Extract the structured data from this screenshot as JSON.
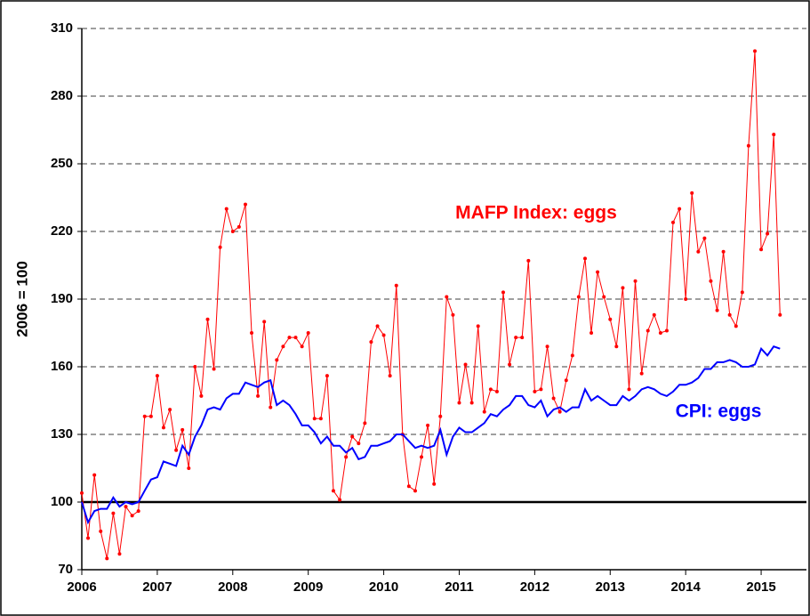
{
  "chart_data": {
    "type": "line",
    "y_label": "2006 = 100",
    "x": [
      2006,
      2006.083,
      2006.167,
      2006.25,
      2006.333,
      2006.417,
      2006.5,
      2006.583,
      2006.667,
      2006.75,
      2006.833,
      2006.917,
      2007,
      2007.083,
      2007.167,
      2007.25,
      2007.333,
      2007.417,
      2007.5,
      2007.583,
      2007.667,
      2007.75,
      2007.833,
      2007.917,
      2008,
      2008.083,
      2008.167,
      2008.25,
      2008.333,
      2008.417,
      2008.5,
      2008.583,
      2008.667,
      2008.75,
      2008.833,
      2008.917,
      2009,
      2009.083,
      2009.167,
      2009.25,
      2009.333,
      2009.417,
      2009.5,
      2009.583,
      2009.667,
      2009.75,
      2009.833,
      2009.917,
      2010,
      2010.083,
      2010.167,
      2010.25,
      2010.333,
      2010.417,
      2010.5,
      2010.583,
      2010.667,
      2010.75,
      2010.833,
      2010.917,
      2011,
      2011.083,
      2011.167,
      2011.25,
      2011.333,
      2011.417,
      2011.5,
      2011.583,
      2011.667,
      2011.75,
      2011.833,
      2011.917,
      2012,
      2012.083,
      2012.167,
      2012.25,
      2012.333,
      2012.417,
      2012.5,
      2012.583,
      2012.667,
      2012.75,
      2012.833,
      2012.917,
      2013,
      2013.083,
      2013.167,
      2013.25,
      2013.333,
      2013.417,
      2013.5,
      2013.583,
      2013.667,
      2013.75,
      2013.833,
      2013.917,
      2014,
      2014.083,
      2014.167,
      2014.25,
      2014.333,
      2014.417,
      2014.5,
      2014.583,
      2014.667,
      2014.75,
      2014.833,
      2014.917,
      2015,
      2015.083,
      2015.167,
      2015.25
    ],
    "series": [
      {
        "name": "MAFP Index: eggs",
        "color": "#ff0000",
        "markers": true,
        "values": [
          104,
          84,
          112,
          87,
          75,
          95,
          77,
          98,
          94,
          96,
          138,
          138,
          156,
          133,
          141,
          123,
          132,
          115,
          160,
          147,
          181,
          159,
          213,
          230,
          220,
          222,
          232,
          175,
          147,
          180,
          142,
          163,
          169,
          173,
          173,
          169,
          175,
          137,
          137,
          156,
          105,
          101,
          120,
          129,
          126,
          135,
          171,
          178,
          174,
          156,
          196,
          130,
          107,
          105,
          120,
          134,
          108,
          138,
          191,
          183,
          144,
          161,
          144,
          178,
          140,
          150,
          149,
          193,
          161,
          173,
          173,
          207,
          149,
          150,
          169,
          146,
          140,
          154,
          165,
          191,
          208,
          175,
          202,
          191,
          181,
          169,
          195,
          150,
          198,
          157,
          176,
          183,
          175,
          176,
          224,
          230,
          190,
          237,
          211,
          217,
          198,
          185,
          211,
          183,
          178,
          193,
          258,
          300,
          212,
          219,
          263,
          183
        ]
      },
      {
        "name": "CPI: eggs",
        "color": "#0000ff",
        "markers": false,
        "values": [
          100,
          91,
          96,
          97,
          97,
          102,
          98,
          100,
          99,
          100,
          105,
          110,
          111,
          118,
          117,
          116,
          125,
          121,
          129,
          134,
          141,
          142,
          141,
          146,
          148,
          148,
          153,
          152,
          151,
          153,
          154,
          143,
          145,
          143,
          139,
          134,
          134,
          131,
          126,
          129,
          125,
          125,
          122,
          124,
          119,
          120,
          125,
          125,
          126,
          127,
          130,
          130,
          127,
          124,
          125,
          124,
          125,
          132,
          121,
          129,
          133,
          131,
          131,
          133,
          135,
          139,
          138,
          141,
          143,
          147,
          147,
          143,
          142,
          145,
          138,
          141,
          142,
          140,
          142,
          142,
          150,
          145,
          147,
          145,
          143,
          143,
          147,
          145,
          147,
          150,
          151,
          150,
          148,
          147,
          149,
          152,
          152,
          153,
          155,
          159,
          159,
          162,
          162,
          163,
          162,
          160,
          160,
          161,
          168,
          165,
          169,
          168
        ]
      }
    ],
    "xlim": [
      2006,
      2015.6
    ],
    "xticks": [
      2006,
      2007,
      2008,
      2009,
      2010,
      2011,
      2012,
      2013,
      2014,
      2015
    ],
    "ylim": [
      70,
      310
    ],
    "yticks": [
      70,
      100,
      130,
      160,
      190,
      220,
      250,
      280,
      310
    ],
    "reference_line": 100,
    "grid": true
  }
}
